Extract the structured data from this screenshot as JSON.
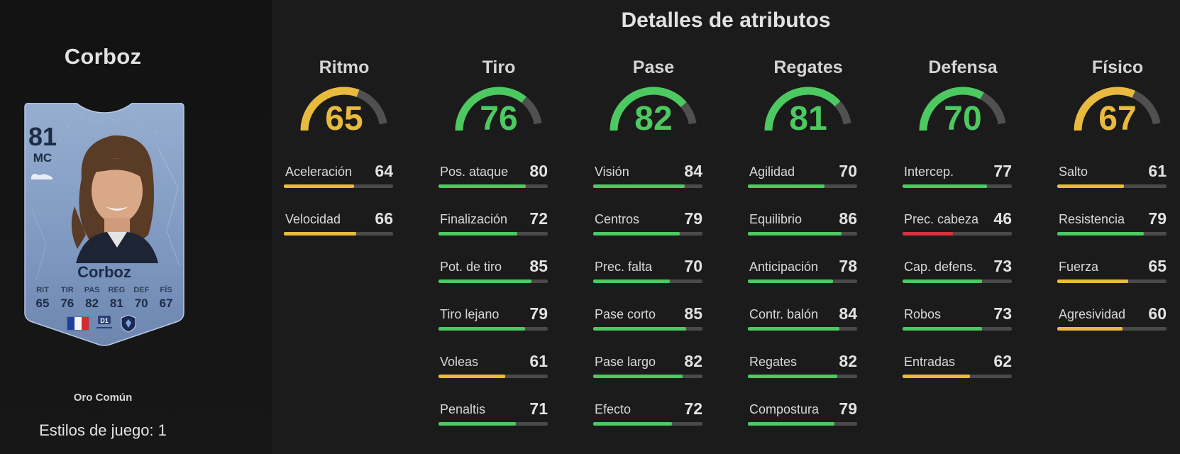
{
  "player": {
    "name": "Corboz",
    "rarity": "Oro Común",
    "playstyles_text": "Estilos de juego: 1"
  },
  "card": {
    "rating": "81",
    "position": "MC",
    "name": "Corboz",
    "stats": [
      {
        "label": "RIT",
        "value": "65"
      },
      {
        "label": "TIR",
        "value": "76"
      },
      {
        "label": "PAS",
        "value": "82"
      },
      {
        "label": "REG",
        "value": "81"
      },
      {
        "label": "DEF",
        "value": "70"
      },
      {
        "label": "FÍS",
        "value": "67"
      }
    ],
    "nation_icon": "france-flag-icon",
    "league_icon": "d1-arkema-league-icon",
    "league_text": "D1",
    "club_icon": "paris-fc-crest-icon"
  },
  "colors": {
    "green": "#4cc960",
    "yellow": "#e8bb3f",
    "red": "#d8313c",
    "track": "#4a4a4a"
  },
  "details_title": "Detalles de atributos",
  "categories": [
    {
      "name": "Ritmo",
      "value": "65",
      "attributes": [
        {
          "label": "Aceleración",
          "value": "64"
        },
        {
          "label": "Velocidad",
          "value": "66"
        }
      ]
    },
    {
      "name": "Tiro",
      "value": "76",
      "attributes": [
        {
          "label": "Pos. ataque",
          "value": "80"
        },
        {
          "label": "Finalización",
          "value": "72"
        },
        {
          "label": "Pot. de tiro",
          "value": "85"
        },
        {
          "label": "Tiro lejano",
          "value": "79"
        },
        {
          "label": "Voleas",
          "value": "61"
        },
        {
          "label": "Penaltis",
          "value": "71"
        }
      ]
    },
    {
      "name": "Pase",
      "value": "82",
      "attributes": [
        {
          "label": "Visión",
          "value": "84"
        },
        {
          "label": "Centros",
          "value": "79"
        },
        {
          "label": "Prec. falta",
          "value": "70"
        },
        {
          "label": "Pase corto",
          "value": "85"
        },
        {
          "label": "Pase largo",
          "value": "82"
        },
        {
          "label": "Efecto",
          "value": "72"
        }
      ]
    },
    {
      "name": "Regates",
      "value": "81",
      "attributes": [
        {
          "label": "Agilidad",
          "value": "70"
        },
        {
          "label": "Equilibrio",
          "value": "86"
        },
        {
          "label": "Anticipación",
          "value": "78"
        },
        {
          "label": "Contr. balón",
          "value": "84"
        },
        {
          "label": "Regates",
          "value": "82"
        },
        {
          "label": "Compostura",
          "value": "79"
        }
      ]
    },
    {
      "name": "Defensa",
      "value": "70",
      "attributes": [
        {
          "label": "Intercep.",
          "value": "77"
        },
        {
          "label": "Prec. cabeza",
          "value": "46"
        },
        {
          "label": "Cap. defens.",
          "value": "73"
        },
        {
          "label": "Robos",
          "value": "73"
        },
        {
          "label": "Entradas",
          "value": "62"
        }
      ]
    },
    {
      "name": "Físico",
      "value": "67",
      "attributes": [
        {
          "label": "Salto",
          "value": "61"
        },
        {
          "label": "Resistencia",
          "value": "79"
        },
        {
          "label": "Fuerza",
          "value": "65"
        },
        {
          "label": "Agresividad",
          "value": "60"
        }
      ]
    }
  ]
}
